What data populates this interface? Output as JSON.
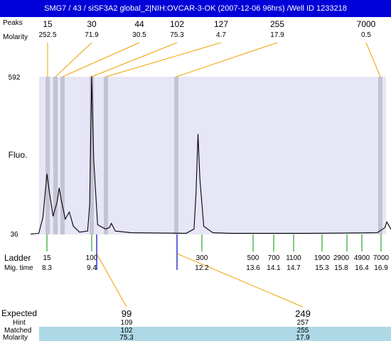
{
  "title": "SMG7 / 43 / siSF3A2 global_2|NIH:OVCAR-3-OK (2007-12-06 96hrs) /Well ID 1233218",
  "chart_data": {
    "type": "line",
    "ylabel": "Fluo.",
    "y_ticks": [
      "592",
      "36"
    ],
    "ylim": [
      36,
      592
    ],
    "peak_table": {
      "row_labels": [
        "Peaks",
        "Molarity"
      ],
      "sizes": [
        "15",
        "30",
        "44",
        "102",
        "127",
        "255",
        "7000"
      ],
      "molarity": [
        "252.5",
        "71.9",
        "30.5",
        "75.3",
        "4.7",
        "17.9",
        "0.5"
      ]
    },
    "ladder": {
      "row_labels": [
        "Ladder",
        "Mig. time"
      ],
      "sizes": [
        "15",
        "100",
        "300",
        "500",
        "700",
        "1100",
        "1900",
        "2900",
        "4900",
        "7000"
      ],
      "mig_times": [
        "8.3",
        "9.4",
        "12.2",
        "13.6",
        "14.1",
        "14.7",
        "15.3",
        "15.8",
        "16.4",
        "16.9"
      ]
    },
    "expected": {
      "row_labels": [
        "Expected",
        "Hint",
        "Matched",
        "Molarity"
      ],
      "items": [
        {
          "expected": "99",
          "hint": "109",
          "matched": "102",
          "molarity": "75.3"
        },
        {
          "expected": "249",
          "hint": "257",
          "matched": "255",
          "molarity": "17.9"
        }
      ]
    },
    "trace": {
      "mig_time_range": [
        7.9,
        17.3
      ],
      "baseline": 36,
      "points": [
        [
          7.9,
          37
        ],
        [
          8.1,
          40
        ],
        [
          8.2,
          95
        ],
        [
          8.25,
          170
        ],
        [
          8.3,
          250
        ],
        [
          8.35,
          195
        ],
        [
          8.45,
          100
        ],
        [
          8.55,
          150
        ],
        [
          8.6,
          200
        ],
        [
          8.65,
          160
        ],
        [
          8.75,
          90
        ],
        [
          8.85,
          115
        ],
        [
          8.95,
          65
        ],
        [
          9.1,
          44
        ],
        [
          9.3,
          48
        ],
        [
          9.35,
          140
        ],
        [
          9.4,
          600
        ],
        [
          9.45,
          300
        ],
        [
          9.55,
          70
        ],
        [
          9.75,
          55
        ],
        [
          9.85,
          60
        ],
        [
          9.9,
          75
        ],
        [
          10.0,
          48
        ],
        [
          10.4,
          42
        ],
        [
          11.8,
          40
        ],
        [
          12.0,
          55
        ],
        [
          12.05,
          180
        ],
        [
          12.1,
          390
        ],
        [
          12.15,
          230
        ],
        [
          12.25,
          65
        ],
        [
          12.5,
          42
        ],
        [
          13.0,
          40
        ],
        [
          15.0,
          40
        ],
        [
          16.8,
          42
        ],
        [
          17.0,
          60
        ],
        [
          17.05,
          80
        ],
        [
          17.1,
          68
        ],
        [
          17.2,
          45
        ],
        [
          17.3,
          40
        ]
      ]
    },
    "colors": {
      "title_bg": "#0000d8",
      "plot_bg": "#e6e6f6",
      "band": "#c3c3d3",
      "callout": "#f0a000",
      "ladder_tick": "#009000",
      "expected_marker": "#0000cc",
      "expected_text": "#ff0000",
      "table_band": "#add8e6"
    }
  }
}
